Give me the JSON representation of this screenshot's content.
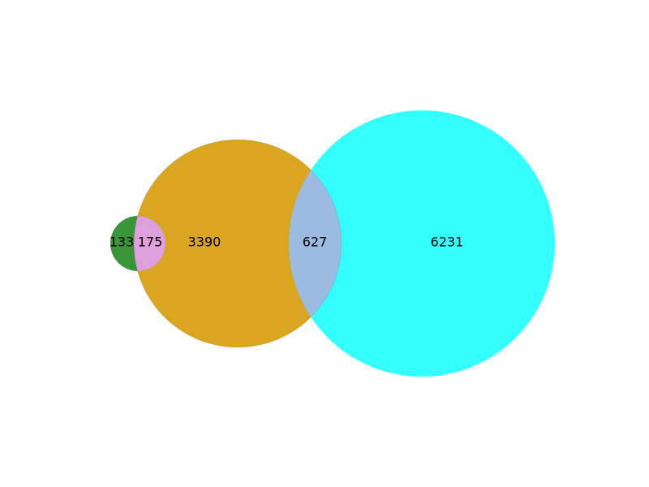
{
  "venn": {
    "sets": [
      {
        "id": "A",
        "color": "#228B22"
      },
      {
        "id": "B",
        "color": "#DAA520"
      },
      {
        "id": "C",
        "color": "#00FFFF"
      }
    ],
    "regions": {
      "only_A": "133",
      "A_and_B": "175",
      "only_B": "3390",
      "B_and_C": "627",
      "only_C": "6231"
    },
    "colors": {
      "A_and_B": "#DDA0DD",
      "B_and_C": "#9BBBE0"
    }
  }
}
